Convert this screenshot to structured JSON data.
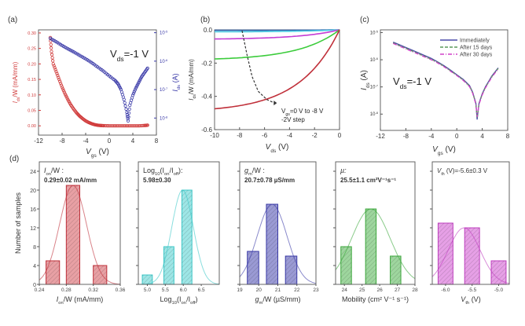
{
  "figure": {
    "panel_labels": [
      "(a)",
      "(b)",
      "(c)",
      "(d)"
    ]
  },
  "chart_data": [
    {
      "id": "a",
      "type": "scatter",
      "panel_label": "(a)",
      "title": "",
      "annotation": {
        "main": "V",
        "sub": "ds",
        "rest": "=-1 V"
      },
      "xlabel": {
        "main": "V",
        "sub": "gs",
        "rest": " (V)"
      },
      "ylabel_left": {
        "main": "I",
        "sub": "ds",
        "rest": "/W (mA/mm)"
      },
      "ylabel_right": {
        "main": "I",
        "sub": "ds",
        "rest": " (A)"
      },
      "xlim": [
        -12,
        8
      ],
      "xticks": [
        -12,
        -8,
        -4,
        0,
        4,
        8
      ],
      "ylim_left": [
        -0.03,
        0.31
      ],
      "yticks_left": [
        "0.00",
        "0.05",
        "0.10",
        "0.15",
        "0.20",
        "0.25",
        "0.30"
      ],
      "ylim_right_log": [
        -8.6,
        -4.9
      ],
      "yticks_right": [
        {
          "exp": -5,
          "label": "10",
          "sup": "-5"
        },
        {
          "exp": -6,
          "label": "10",
          "sup": "-6"
        },
        {
          "exp": -7,
          "label": "10",
          "sup": "-7"
        },
        {
          "exp": -8,
          "label": "10",
          "sup": "-8"
        }
      ],
      "colors": {
        "left": "#d03a3a",
        "right": "#3a3aa8"
      },
      "series": [
        {
          "name": "linear",
          "axis": "left",
          "color": "#d03a3a",
          "x": [
            -10,
            -9.8,
            -9.5,
            -9,
            -8.5,
            -8,
            -7.5,
            -7,
            -6.5,
            -6,
            -5.5,
            -5,
            -4.5,
            -4,
            -3.5,
            -3,
            -2.5,
            -2,
            -1.5,
            -1,
            0,
            1,
            2,
            3,
            4,
            5,
            6,
            6.5
          ],
          "y": [
            0.285,
            0.24,
            0.2,
            0.175,
            0.15,
            0.125,
            0.103,
            0.084,
            0.067,
            0.053,
            0.041,
            0.031,
            0.023,
            0.016,
            0.011,
            0.007,
            0.004,
            0.002,
            0.001,
            0.0005,
            0,
            0,
            0,
            0,
            0,
            0,
            0.001,
            0.002
          ]
        },
        {
          "name": "log",
          "axis": "right",
          "color": "#3a3aa8",
          "x": [
            -10,
            -9,
            -8,
            -7,
            -6,
            -5,
            -4,
            -3,
            -2,
            -1,
            0,
            1,
            1.5,
            2,
            2.5,
            3,
            3.2,
            3.5,
            4,
            4.5,
            5,
            5.5,
            6,
            6.5
          ],
          "y_log": [
            -5.2,
            -5.32,
            -5.45,
            -5.57,
            -5.68,
            -5.8,
            -5.92,
            -6.05,
            -6.2,
            -6.35,
            -6.52,
            -6.68,
            -6.8,
            -7.0,
            -7.35,
            -7.8,
            -8.1,
            -7.55,
            -7.2,
            -6.95,
            -6.75,
            -6.55,
            -6.4,
            -6.25
          ]
        }
      ]
    },
    {
      "id": "b",
      "type": "line",
      "panel_label": "(b)",
      "title": "",
      "xlabel": {
        "main": "V",
        "sub": "ds",
        "rest": " (V)"
      },
      "ylabel": {
        "main": "I",
        "sub": "ds",
        "rest": "/W (mA/mm)"
      },
      "xlim": [
        -10,
        0
      ],
      "xticks": [
        -10,
        -8,
        -6,
        -4,
        -2,
        0
      ],
      "ylim": [
        -0.6,
        0.0
      ],
      "yticks": [
        "-0.6",
        "-0.4",
        "-0.2",
        "0.0"
      ],
      "annotation": {
        "line1_main": "V",
        "line1_sub": "gs",
        "line1_rest": "=0 V to -8 V",
        "line2": "-2V step"
      },
      "series": [
        {
          "name": "Vgs=0 V",
          "color": "#2b5fa8",
          "sat": -0.003
        },
        {
          "name": "Vgs=-2 V",
          "color": "#4fd0e6",
          "sat": -0.012
        },
        {
          "name": "Vgs=-4 V",
          "color": "#c43cd4",
          "sat": -0.055
        },
        {
          "name": "Vgs=-6 V",
          "color": "#3ccc3c",
          "sat": -0.175
        },
        {
          "name": "Vgs=-8 V",
          "color": "#c0303a",
          "sat": -0.475
        }
      ],
      "arrow_path": {
        "x": [
          -7.8,
          -7.4,
          -7.0,
          -6.5,
          -5.8,
          -5.2
        ],
        "y": [
          -0.005,
          -0.15,
          -0.28,
          -0.37,
          -0.42,
          -0.44
        ]
      }
    },
    {
      "id": "c",
      "type": "line",
      "panel_label": "(c)",
      "title": "",
      "annotation": {
        "main": "V",
        "sub": "ds",
        "rest": "=-1 V"
      },
      "xlabel": {
        "main": "V",
        "sub": "gs",
        "rest": " (V)"
      },
      "ylabel": {
        "main": "I",
        "sub": "ds",
        "rest": " (A)"
      },
      "xlim": [
        -12,
        8
      ],
      "xticks": [
        -12,
        -8,
        -4,
        0,
        4,
        8
      ],
      "ylim_log": [
        -8.6,
        -4.9
      ],
      "yticks": [
        {
          "exp": -5,
          "label": "10",
          "sup": "-5"
        },
        {
          "exp": -6,
          "label": "10",
          "sup": "-6"
        },
        {
          "exp": -7,
          "label": "10",
          "sup": "-7"
        },
        {
          "exp": -8,
          "label": "10",
          "sup": "-8"
        }
      ],
      "legend": {
        "placement": "top-right",
        "entries": [
          "Immediately",
          "After 15 days",
          "After 30 days"
        ]
      },
      "series": [
        {
          "name": "Immediately",
          "color": "#4a4aa8",
          "dash": "solid",
          "x": [
            -10,
            -9,
            -8,
            -7,
            -6,
            -5,
            -4,
            -3,
            -2,
            -1,
            0,
            1,
            2,
            2.5,
            3,
            3.2,
            3.5,
            4,
            4.5,
            5,
            5.5,
            6,
            6.5
          ],
          "y_log": [
            -5.35,
            -5.45,
            -5.55,
            -5.65,
            -5.75,
            -5.85,
            -5.95,
            -6.08,
            -6.22,
            -6.38,
            -6.55,
            -6.72,
            -6.95,
            -7.2,
            -7.6,
            -8.2,
            -7.6,
            -7.25,
            -7.0,
            -6.8,
            -6.6,
            -6.45,
            -6.3
          ]
        },
        {
          "name": "After 15 days",
          "color": "#5a9a5a",
          "dash": "dashed",
          "x": [
            -10,
            -9,
            -8,
            -7,
            -6,
            -5,
            -4,
            -3,
            -2,
            -1,
            0,
            1,
            2,
            2.5,
            3,
            3.2,
            3.5,
            4,
            4.5,
            5,
            5.5,
            6,
            6.5
          ],
          "y_log": [
            -5.38,
            -5.48,
            -5.58,
            -5.68,
            -5.78,
            -5.88,
            -5.98,
            -6.1,
            -6.24,
            -6.4,
            -6.57,
            -6.74,
            -6.97,
            -7.22,
            -7.62,
            -8.15,
            -7.62,
            -7.27,
            -7.02,
            -6.82,
            -6.62,
            -6.47,
            -6.32
          ]
        },
        {
          "name": "After 30 days",
          "color": "#d040c8",
          "dash": "dashdot",
          "x": [
            -10,
            -9,
            -8,
            -7,
            -6,
            -5,
            -4,
            -3,
            -2,
            -1,
            0,
            1,
            2,
            2.5,
            3,
            3.2,
            3.5,
            4,
            4.5,
            5,
            5.5,
            6,
            6.5
          ],
          "y_log": [
            -5.4,
            -5.5,
            -5.6,
            -5.7,
            -5.8,
            -5.9,
            -6.0,
            -6.12,
            -6.26,
            -6.42,
            -6.58,
            -6.76,
            -6.99,
            -7.24,
            -7.64,
            -8.1,
            -7.64,
            -7.29,
            -7.04,
            -6.84,
            -6.64,
            -6.49,
            -6.34
          ]
        }
      ]
    },
    {
      "id": "d1",
      "type": "bar",
      "panel_label": "(d)",
      "title": {
        "line1_main": "I",
        "line1_sub": "on",
        "line1_rest": "/W :",
        "line2": "0.29±0.02 mA/mm"
      },
      "xlabel": {
        "main": "I",
        "sub": "on",
        "rest": "/W (mA/mm)"
      },
      "ylabel": "Number of samples",
      "xlim": [
        0.24,
        0.36
      ],
      "xticks": [
        "0.24",
        "0.28",
        "0.32",
        "0.36"
      ],
      "ylim": [
        0,
        26
      ],
      "yticks": [
        "0",
        "4",
        "8",
        "12",
        "16",
        "20",
        "24"
      ],
      "color": "#c0303a",
      "fill": "#e8a0a4",
      "bins": [
        {
          "center": 0.26,
          "width": 0.02,
          "count": 5
        },
        {
          "center": 0.29,
          "width": 0.02,
          "count": 21
        },
        {
          "center": 0.33,
          "width": 0.02,
          "count": 4
        }
      ],
      "fit": {
        "mean": 0.29,
        "sigma": 0.02,
        "peak": 21
      }
    },
    {
      "id": "d2",
      "type": "bar",
      "title": {
        "line1_main": "Log",
        "line1_sub": "10",
        "line1_rest": "(I",
        "line1_sub2": "on",
        "line1_rest2": "/I",
        "line1_sub3": "off",
        "line1_rest3": "):",
        "line2": "5.98±0.30"
      },
      "xlabel": {
        "main": "Log",
        "sub": "10",
        "rest": "(I",
        "sub2": "on",
        "rest2": "/I",
        "sub3": "off",
        "rest3": ")"
      },
      "xlim": [
        4.75,
        7.0
      ],
      "xticks": [
        "5.0",
        "5.5",
        "6.0",
        "6.5"
      ],
      "ylim": [
        0,
        26
      ],
      "color": "#3cc8c8",
      "fill": "#9ee6e6",
      "bins": [
        {
          "center": 5.0,
          "width": 0.28,
          "count": 2
        },
        {
          "center": 5.6,
          "width": 0.28,
          "count": 8
        },
        {
          "center": 6.1,
          "width": 0.28,
          "count": 20
        }
      ],
      "fit": {
        "mean": 5.98,
        "sigma": 0.3,
        "peak": 20
      }
    },
    {
      "id": "d3",
      "type": "bar",
      "title": {
        "line1_main": "g",
        "line1_sub": "m",
        "line1_rest": "/W :",
        "line2": "20.7±0.78 µS/mm"
      },
      "xlabel": {
        "main": "g",
        "sub": "m",
        "rest": "/W (µS/mm)"
      },
      "xlim": [
        19,
        23
      ],
      "xticks": [
        "19",
        "20",
        "21",
        "22",
        "23"
      ],
      "ylim": [
        0,
        26
      ],
      "color": "#3a3aa8",
      "fill": "#9a9ad4",
      "bins": [
        {
          "center": 19.7,
          "width": 0.6,
          "count": 7
        },
        {
          "center": 20.7,
          "width": 0.6,
          "count": 17
        },
        {
          "center": 21.7,
          "width": 0.6,
          "count": 6
        }
      ],
      "fit": {
        "mean": 20.7,
        "sigma": 0.78,
        "peak": 17
      }
    },
    {
      "id": "d4",
      "type": "bar",
      "title": {
        "line1_main": "µ:",
        "line2": "25.5±1.1 cm²V⁻¹s⁻¹"
      },
      "xlabel": {
        "main": "Mobility (cm² V⁻¹ s⁻¹)"
      },
      "xlim": [
        23.5,
        28
      ],
      "xticks": [
        "24",
        "25",
        "26",
        "27",
        "28"
      ],
      "ylim": [
        0,
        26
      ],
      "color": "#3ca83c",
      "fill": "#9ed69e",
      "bins": [
        {
          "center": 24.1,
          "width": 0.6,
          "count": 8
        },
        {
          "center": 25.5,
          "width": 0.6,
          "count": 16
        },
        {
          "center": 26.9,
          "width": 0.6,
          "count": 6
        }
      ],
      "fit": {
        "mean": 25.5,
        "sigma": 1.1,
        "peak": 16
      }
    },
    {
      "id": "d5",
      "type": "bar",
      "title": {
        "line1_main": "V",
        "line1_sub": "th",
        "line1_rest": " (V)=-5.6±0.3 V"
      },
      "xlabel": {
        "main": "V",
        "sub": "th",
        "rest": " (V)"
      },
      "xlim": [
        -6.25,
        -4.8
      ],
      "xticks": [
        "-6.0",
        "-5.5",
        "-5.0"
      ],
      "ylim": [
        0,
        26
      ],
      "color": "#c040c0",
      "fill": "#e6a0e6",
      "bins": [
        {
          "center": -6.0,
          "width": 0.28,
          "count": 13
        },
        {
          "center": -5.5,
          "width": 0.28,
          "count": 12
        },
        {
          "center": -5.0,
          "width": 0.28,
          "count": 5
        }
      ],
      "fit": {
        "mean": -5.65,
        "sigma": 0.3,
        "peak": 12
      }
    }
  ]
}
